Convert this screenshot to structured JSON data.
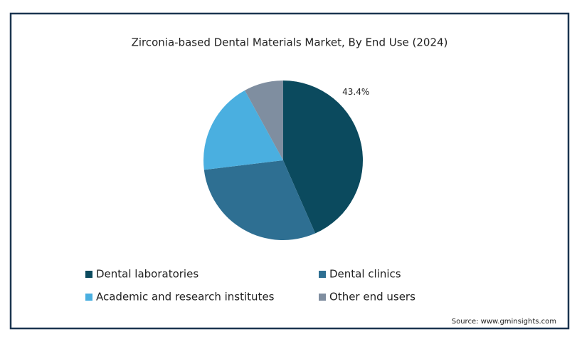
{
  "chart_data": {
    "type": "pie",
    "title": "Zirconia-based Dental Materials Market, By End Use (2024)",
    "categories": [
      "Dental laboratories",
      "Dental clinics",
      "Academic and research institutes",
      "Other end users"
    ],
    "values": [
      43.4,
      29.7,
      18.9,
      8
    ],
    "value_labels": [
      "43.4%",
      null,
      null,
      null
    ],
    "colors": [
      "#0b4a5e",
      "#2e6f92",
      "#4aafe0",
      "#7f8ea0"
    ],
    "legend": "bottom",
    "source": "Source: www.gminsights.com"
  }
}
